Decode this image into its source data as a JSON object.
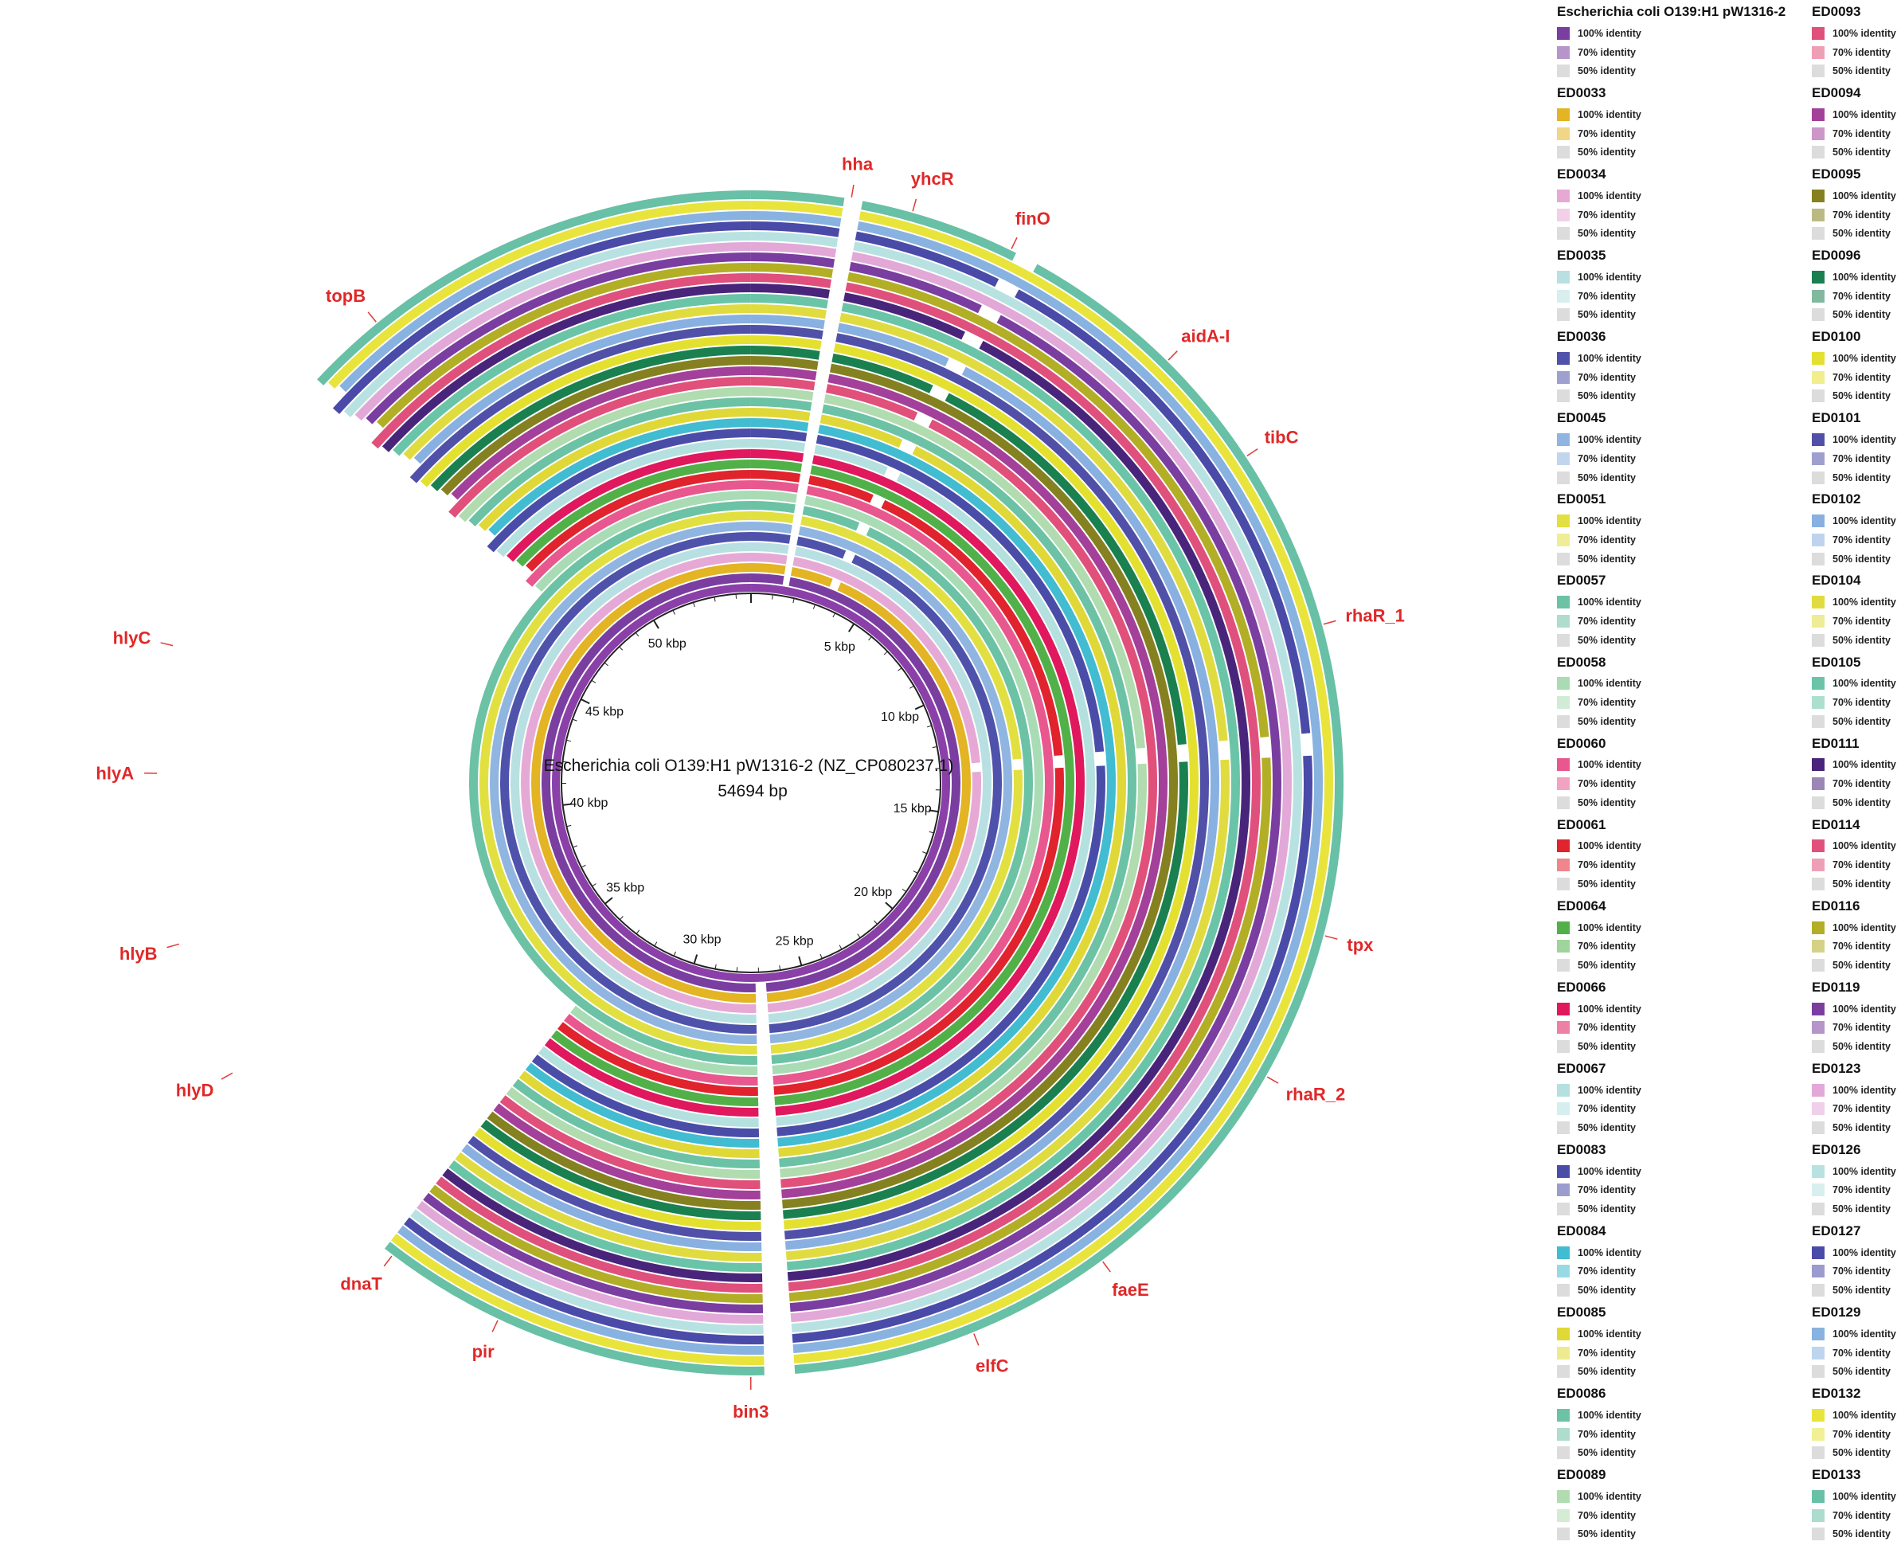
{
  "figure": {
    "reference_name": "Escherichia coli O139:H1 pW1316-2 (NZ_CP080237.1)",
    "reference_length": "54694 bp",
    "kbp_ticks": [
      {
        "label": "5 kbp",
        "pos": 5000
      },
      {
        "label": "10 kbp",
        "pos": 10000
      },
      {
        "label": "15 kbp",
        "pos": 15000
      },
      {
        "label": "20 kbp",
        "pos": 20000
      },
      {
        "label": "25 kbp",
        "pos": 25000
      },
      {
        "label": "30 kbp",
        "pos": 30000
      },
      {
        "label": "35 kbp",
        "pos": 35000
      },
      {
        "label": "40 kbp",
        "pos": 40000
      },
      {
        "label": "45 kbp",
        "pos": 45000
      },
      {
        "label": "50 kbp",
        "pos": 50000
      }
    ],
    "genes": [
      {
        "label": "hha",
        "pos": 1480
      },
      {
        "label": "yhcR",
        "pos": 2400
      },
      {
        "label": "finO",
        "pos": 3950
      },
      {
        "label": "aidA-I",
        "pos": 6780
      },
      {
        "label": "tibC",
        "pos": 8600
      },
      {
        "label": "rhaR_1",
        "pos": 11320
      },
      {
        "label": "tpx",
        "pos": 15940
      },
      {
        "label": "rhaR_2",
        "pos": 18180
      },
      {
        "label": "faeE",
        "pos": 21830
      },
      {
        "label": "elfC",
        "pos": 24000
      },
      {
        "label": "bin3",
        "pos": 27350
      },
      {
        "label": "pir",
        "pos": 31180
      },
      {
        "label": "dnaT",
        "pos": 33000
      },
      {
        "label": "hlyD",
        "pos": 36580
      },
      {
        "label": "hlyB",
        "pos": 38630
      },
      {
        "label": "hlyA",
        "pos": 41160
      },
      {
        "label": "hlyC",
        "pos": 43050
      },
      {
        "label": "topB",
        "pos": 48750
      }
    ],
    "identity_labels": [
      "100% identity",
      "70% identity",
      "50% identity"
    ]
  },
  "legend_col1": [
    {
      "name": "Escherichia coli O139:H1 pW1316-2",
      "color": "#7a3ea0"
    },
    {
      "name": "ED0033",
      "color": "#e3b423"
    },
    {
      "name": "ED0034",
      "color": "#e6a9d6"
    },
    {
      "name": "ED0035",
      "color": "#b8e0e2"
    },
    {
      "name": "ED0036",
      "color": "#4f52aa"
    },
    {
      "name": "ED0045",
      "color": "#8fb5e0"
    },
    {
      "name": "ED0051",
      "color": "#e2e040"
    },
    {
      "name": "ED0057",
      "color": "#6cc2a5"
    },
    {
      "name": "ED0058",
      "color": "#a9dcb5"
    },
    {
      "name": "ED0060",
      "color": "#e8578e"
    },
    {
      "name": "ED0061",
      "color": "#e0232d"
    },
    {
      "name": "ED0064",
      "color": "#51b148"
    },
    {
      "name": "ED0066",
      "color": "#e0185d"
    },
    {
      "name": "ED0067",
      "color": "#b4e0e0"
    },
    {
      "name": "ED0083",
      "color": "#4a4da8"
    },
    {
      "name": "ED0084",
      "color": "#42bcd0"
    },
    {
      "name": "ED0085",
      "color": "#e0d836"
    },
    {
      "name": "ED0086",
      "color": "#6cc2a5"
    },
    {
      "name": "ED0089",
      "color": "#b0dcb0"
    }
  ],
  "legend_col2": [
    {
      "name": "ED0093",
      "color": "#e0507a"
    },
    {
      "name": "ED0094",
      "color": "#a3409a"
    },
    {
      "name": "ED0095",
      "color": "#858120"
    },
    {
      "name": "ED0096",
      "color": "#1a8050"
    },
    {
      "name": "ED0100",
      "color": "#e4e030"
    },
    {
      "name": "ED0101",
      "color": "#5050a8"
    },
    {
      "name": "ED0102",
      "color": "#88b0e0"
    },
    {
      "name": "ED0104",
      "color": "#e0dc40"
    },
    {
      "name": "ED0105",
      "color": "#6ac4a8"
    },
    {
      "name": "ED0111",
      "color": "#48257a"
    },
    {
      "name": "ED0114",
      "color": "#e0507c"
    },
    {
      "name": "ED0116",
      "color": "#b2ae26"
    },
    {
      "name": "ED0119",
      "color": "#7a3ea0"
    },
    {
      "name": "ED0123",
      "color": "#e2a8d8"
    },
    {
      "name": "ED0126",
      "color": "#b8e2e2"
    },
    {
      "name": "ED0127",
      "color": "#4a4aa8"
    },
    {
      "name": "ED0129",
      "color": "#88b2e0"
    },
    {
      "name": "ED0132",
      "color": "#e8e43c"
    },
    {
      "name": "ED0133",
      "color": "#68c0a6"
    }
  ]
}
